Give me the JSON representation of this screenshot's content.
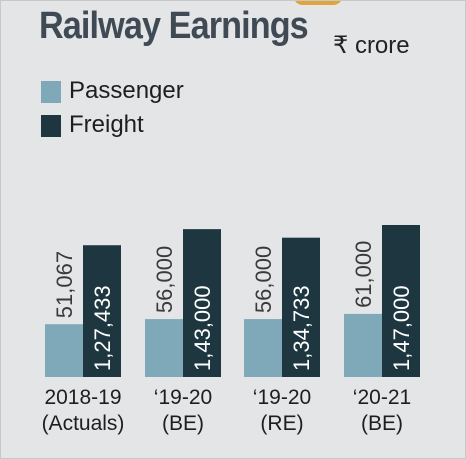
{
  "header": {
    "title": "Railway Earnings",
    "unit": "₹ crore"
  },
  "legend": [
    {
      "label": "Passenger",
      "color": "#7fa8b9"
    },
    {
      "label": "Freight",
      "color": "#1d3640"
    }
  ],
  "chart_data": {
    "type": "bar",
    "title": "Railway Earnings",
    "ylabel": "₹ crore",
    "categories": [
      [
        "2018-19",
        "(Actuals)"
      ],
      [
        "‘19-20",
        "(BE)"
      ],
      [
        "‘19-20",
        "(RE)"
      ],
      [
        "‘20-21",
        "(BE)"
      ]
    ],
    "series": [
      {
        "name": "Passenger",
        "color": "#7fa8b9",
        "values": [
          51067,
          56000,
          56000,
          61000
        ],
        "labels": [
          "51,067",
          "56,000",
          "56,000",
          "61,000"
        ]
      },
      {
        "name": "Freight",
        "color": "#1d3640",
        "values": [
          127433,
          143000,
          134733,
          147000
        ],
        "labels": [
          "1,27,433",
          "1,43,000",
          "1,34,733",
          "1,47,000"
        ]
      }
    ],
    "ylim": [
      0,
      147000
    ],
    "grid": false,
    "legend_position": "top-left"
  }
}
